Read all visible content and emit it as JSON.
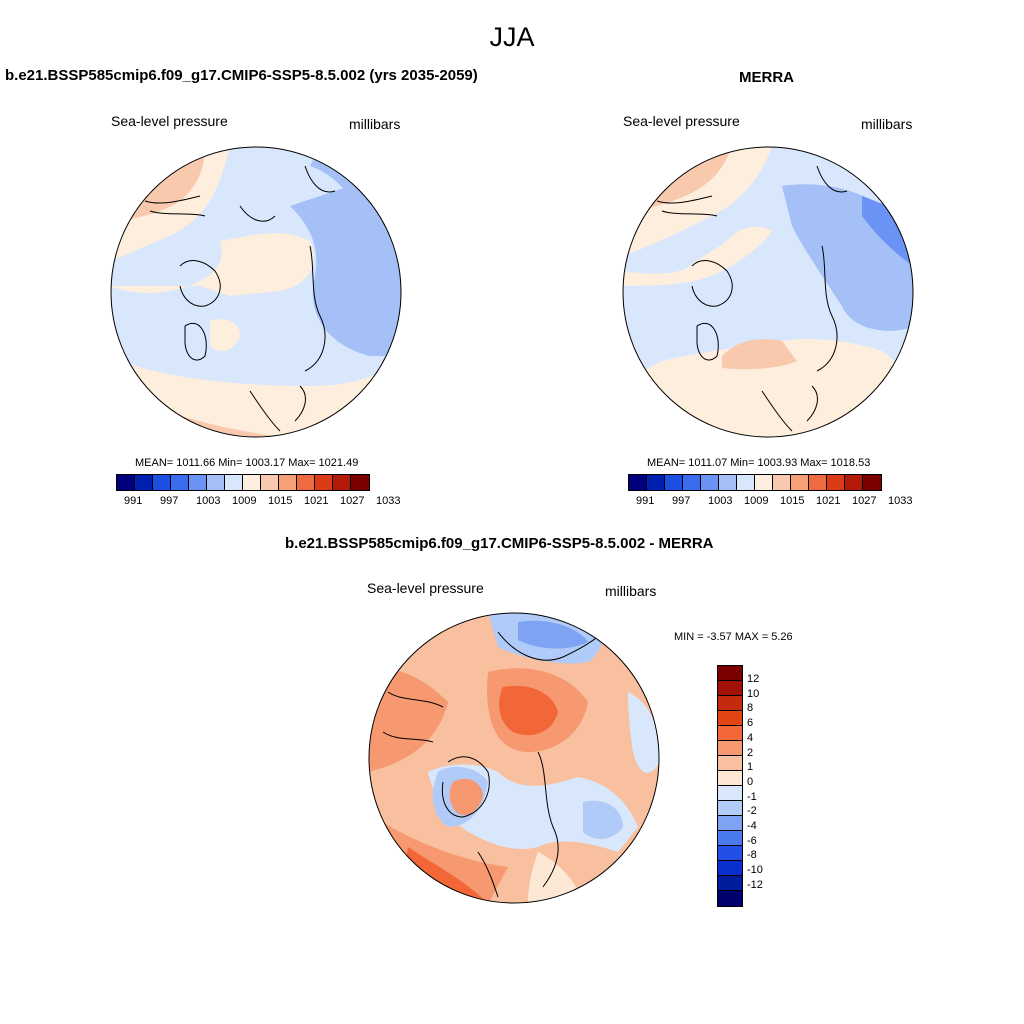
{
  "title": "JJA",
  "colors": {
    "pressure_scale": [
      "#00007f",
      "#0020b0",
      "#1a4fe0",
      "#3a6cf0",
      "#6a93f5",
      "#a5c0f7",
      "#d8e7fb",
      "#fdeede",
      "#f8c9ac",
      "#f6a07a",
      "#ee6a40",
      "#dc3b18",
      "#b41a0a",
      "#7a0000"
    ],
    "diff_scale": [
      "#7a0000",
      "#a01208",
      "#c42a0c",
      "#e24414",
      "#f36638",
      "#f69870",
      "#f8c09e",
      "#fde8d6",
      "#d8e7fb",
      "#b0cbf7",
      "#7ea3f3",
      "#4b79ee",
      "#2250e6",
      "#0a2fcc",
      "#001d9e",
      "#00006e"
    ]
  },
  "panels": {
    "model": {
      "title": "b.e21.BSSP585cmip6.f09_g17.CMIP6-SSP5-8.5.002 (yrs 2035-2059)",
      "left_label": "Sea-level pressure",
      "right_label": "millibars",
      "stats": "MEAN= 1011.66  Min= 1003.17  Max= 1021.49"
    },
    "obs": {
      "title": "MERRA",
      "left_label": "Sea-level pressure",
      "right_label": "millibars",
      "stats": "MEAN= 1011.07  Min= 1003.93  Max= 1018.53"
    },
    "diff": {
      "title": "b.e21.BSSP585cmip6.f09_g17.CMIP6-SSP5-8.5.002 - MERRA",
      "left_label": "Sea-level pressure",
      "right_label": "millibars",
      "stats": "MIN =  -3.57 MAX =   5.26"
    }
  },
  "colorbar_labels": [
    "991",
    "997",
    "1003",
    "1009",
    "1015",
    "1021",
    "1027",
    "1033"
  ],
  "diff_colorbar_labels": [
    "12",
    "10",
    "8",
    "6",
    "4",
    "2",
    "1",
    "0",
    "-1",
    "-2",
    "-4",
    "-6",
    "-8",
    "-10",
    "-12"
  ]
}
